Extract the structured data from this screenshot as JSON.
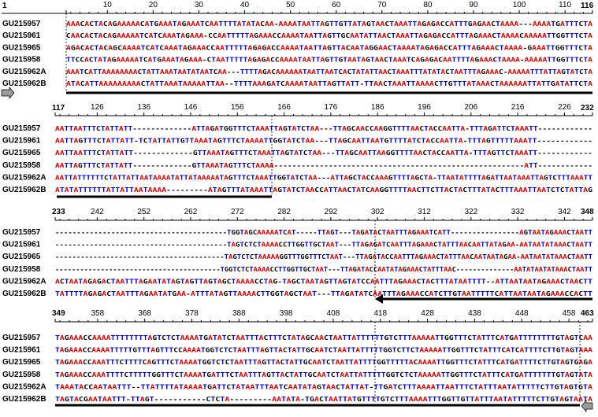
{
  "colors": {
    "A": "#d40000",
    "T": "#0000cc",
    "C": "#000000",
    "G": "#000000",
    "-": "#000000",
    "ruler": "#000000",
    "arrow_fill": "#9a9a9a"
  },
  "blocks": [
    {
      "start": 1,
      "end": 116,
      "ticks": [
        "10",
        "20",
        "30",
        "40",
        "50",
        "60",
        "70",
        "80",
        "90",
        "100",
        "110"
      ],
      "rows": [
        {
          "label": "GU215957",
          "seq": "AAACACTACAGAAAAACATGAAATAGAAATCAATTTTATATACAA-AAAATAATTAGTTGTTATAGTAACTAAATTAGAGACCATTTGAGAACTAAAA---AAAATGATTTCTA"
        },
        {
          "label": "GU215961",
          "seq": "CAACACTACAGAAAAATCATCAAATAGAAA-CCAATTTTTAGAAACCAAAATAATTAGTTGCAATATTAACTAAATTAGAGACCATTTAGAAACTAAAACAAAAATTGGTTTCTA"
        },
        {
          "label": "GU215965",
          "seq": "AGACACTACAGCAAAATCATCAAATAGAAACCAATTTTTAGAGACCAAAATAATTAGTTACAATAGGAACTAAAATAGAGACCATTTAGAAACTAAAA-GAAATTGGTTTCTA"
        },
        {
          "label": "GU215958",
          "seq": "TTCCACTATAGAAAAATCATGAAATAGAAA-CTAATTTTTAGAGACCAAAATAATTAGTTGTAATAGTAACTAAATCAGAGACAATTTTAGAAACTAAAA-AAAAATTGGTTTCTA"
        },
        {
          "label": "GU215962A",
          "seq": "AAATCATTAAAAAAAACTATTAAATAATATAATCAA---TTTTAGACAAAAAATAATTAATCACTATATTAACTAAATTTATATACTAATTTAGAAAC-AAAAATTTATTAGTATCTA"
        },
        {
          "label": "GU215962B",
          "seq": "ATACATTAAAAAAAAACTATTAAATAAAAATTAA--TTTTAAAGATCAAAATAATTAGTTATT-TTAACTAAATTAAAACTTGTTTATAAACTAAAAAATTATTGATATTCTA"
        }
      ]
    },
    {
      "start": 117,
      "end": 232,
      "ticks": [
        "126",
        "136",
        "146",
        "156",
        "166",
        "176",
        "186",
        "196",
        "206",
        "216",
        "226"
      ],
      "rows": [
        {
          "label": "GU215957",
          "seq": "AATTAATTTCTATTATT-------------ATTAGATGGTTTCTAAATTAGTATCTAA---TTAGCAACCAAGGTTTTAACTACCAATTA-TTTAGATTCTAAATT------------"
        },
        {
          "label": "GU215961",
          "seq": "AATTAGTTTCTATTATT-TCTATTATTGTTAAATAGTTTCTAAAATTGGTATCTAA---TTAGCAATTAATGTTTTATCTACCAATTA-TTTAGTTTTTAAATT------------"
        },
        {
          "label": "GU215965",
          "seq": "AATTAATTTCTATTATT-------------GTTAAATAGTTTCTAAATTAGTATCTAA---TTAGCAATTAAGGTTTTAACTACCAATTA-TTTAGTTCTAAATT------------"
        },
        {
          "label": "GU215958",
          "seq": "AATTAGTTTCTATTATT-------------GTTAAATAGTTTCTAAAA-------------------------------------------------------ATT------------"
        },
        {
          "label": "GU215962A",
          "seq": "AATTATTTTTTCTATTATTAATAAAATATTATAAAAATAGTTTCTAAATTGGTATCTAA---ATTAGCTACCAAAGTTTTAGCTA-TTAATATTTTAGATTAATAAATTAGTCTTTAAATT"
        },
        {
          "label": "GU215962B",
          "seq": "ATATATTTTTTATTATTAATAAAA---------ATAGTTTATAAATTAGTATCTAACCATTAACTATCAAGGTTTTAACTTCTTACTACTTTATACTTTAAATTAATCTCTATTAG"
        }
      ]
    },
    {
      "start": 233,
      "end": 348,
      "ticks": [
        "242",
        "252",
        "262",
        "272",
        "282",
        "292",
        "302",
        "312",
        "322",
        "332",
        "342"
      ],
      "rows": [
        {
          "label": "GU215957",
          "seq": "----------------------------------------TGGTAGCAAAAATCAT-----TTAGT---TAGATACTAATTTAGAAATCATT----------------AGTAATAGAAACTAATT"
        },
        {
          "label": "GU215961",
          "seq": "----------------------------------------TAGTCTCTAAAACCTTGGTTGCTAAT---TTAGAGATCAATTTAGAAACTATTTAACAATTATAGAA-AATAATATAAACTAATT"
        },
        {
          "label": "GU215965",
          "seq": "----------------------------------------TAGTCTCTAAAAAGGTTTGGTTTCTAAT---TTAGATACCAATTTAGAAACTATTTAACAATAATAGAA-AATAATATAAACTAATT"
        },
        {
          "label": "GU215958",
          "seq": "----------------------------------------TGGTCTCTAAAACCTTGGTTGCTAAT---TTAGATACCAATATAGAAACTATTTAAC--------------AATATAATATAAACTAATT"
        },
        {
          "label": "GU215962A",
          "seq": "ACTAATAGAGACTAATTTAGAATATAGTAGTTAGTAGCTAAAACCTAG-TAGCTAATAGTTAGTATCCAATTTAGAAACTACTTTATAATTTT--ATTAATAATAGAAACTAACTT"
        },
        {
          "label": "GU215962B",
          "seq": "TATTTTAGAGACTAATTTAGAATATGAA-ATTTATAGTTAAAACTTGGTAGCTAAT---TTAGATATCAATTTAGAAACCATCTTGTAATTTTTCATTAATAATAGAAACCACTT"
        }
      ]
    },
    {
      "start": 349,
      "end": 463,
      "ticks": [
        "358",
        "368",
        "378",
        "388",
        "398",
        "408",
        "418",
        "428",
        "438",
        "448",
        "458"
      ],
      "rows": [
        {
          "label": "GU215957",
          "seq": "TAGAAACCAAAATTTTTTTTAGTCTCTAAAATGATATCTAATTTACTTTCTATAGCAACTAATTATTTTTTGTCTTTAAAAATTGGTTTCTATTTCATGATTTTTTTTGTAGTCAA"
        },
        {
          "label": "GU215961",
          "seq": "TAGAAACCAAAATTTTTGTTTAGTTTCCAAAATGGTCTCTAATTTAGTTACTATTGCAATCTAATTATTTTTGGTCTTCTAAAAATTGGTTTCTATTTCATCATTTTCTTGTAGTAAA"
        },
        {
          "label": "GU215965",
          "seq": "TAGAAACCAAATTTCTTTTCAGTTTCTAAAATGGTCTCTAATTTAGTTACTATTGCAATCTAATTATTTTGGTTTTTACAAAATTGGTTTCTATTTCATGATTTTCTTGTAGTGAGA"
        },
        {
          "label": "GU215958",
          "seq": "TAGAAACCAAATTTTCTTTTTGGTTTCTAAAATGATTTCTAATTTAGTTACTATTGCAATCTAATTATTTTTGGTCTCTAAAAATTGGTTTCTATTTCATGATTTTTTTGTAGTATA"
        },
        {
          "label": "GU215962A",
          "seq": "TAAATACCAATAATTT--TTATTTTATAAAATGATTCTATAATTTAATCAATATAGTAACTATTAT-TTGATCTTTAAAATTAATTTCTATTTAATATTTTTCTTGTAGTGTA"
        },
        {
          "label": "GU215962B",
          "seq": "TAGTACGAATAATTT-TTAGT-----------CTCTA---------AATATA-TGACTAATTATGTTTTGTCTTTAAAATTTGGTTGTTATTTAATATTTTTCTTGTAGTAATA"
        }
      ]
    }
  ]
}
